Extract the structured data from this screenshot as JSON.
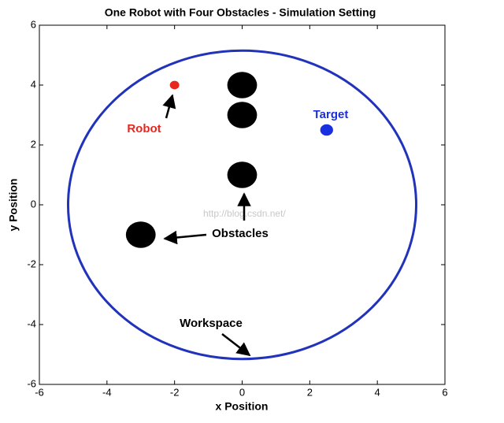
{
  "chart_data": {
    "type": "scatter",
    "title": "One Robot with Four Obstacles - Simulation Setting",
    "xlabel": "x Position",
    "ylabel": "y Position",
    "xlim": [
      -6,
      6
    ],
    "ylim": [
      -6,
      6
    ],
    "xticks": [
      -6,
      -4,
      -2,
      0,
      2,
      4,
      6
    ],
    "yticks": [
      -6,
      -4,
      -2,
      0,
      2,
      4,
      6
    ],
    "series": [
      {
        "color": "#e8261e",
        "x": [
          -2
        ],
        "y": [
          4
        ],
        "radius": [
          0.14
        ]
      },
      {
        "color": "#1a2fe0",
        "x": [
          2.5
        ],
        "y": [
          2.5
        ],
        "radius": [
          0.19
        ]
      },
      {
        "color": "#000000",
        "x": [
          0,
          0,
          0,
          -3
        ],
        "y": [
          4,
          3,
          1,
          -1
        ],
        "radius": [
          0.44,
          0.44,
          0.44,
          0.44
        ]
      }
    ],
    "workspace": {
      "x": 0,
      "y": 0,
      "radius": 5.15,
      "color": "#2233bb"
    },
    "annotations": [
      {
        "text": "Robot",
        "color": "#e8261e"
      },
      {
        "text": "Target",
        "color": "#1a2fe0"
      },
      {
        "text": "Obstacles",
        "color": "#000000"
      },
      {
        "text": "Workspace",
        "color": "#000000"
      }
    ],
    "watermark": "http://blog.csdn.net/"
  }
}
